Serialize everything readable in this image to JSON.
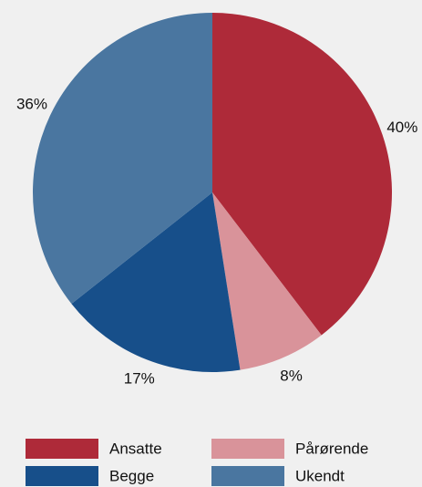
{
  "chart_data": {
    "type": "pie",
    "categories": [
      "Ansatte",
      "Pårørende",
      "Begge",
      "Ukendt"
    ],
    "values": [
      40,
      8,
      17,
      36
    ],
    "value_labels": [
      "40%",
      "8%",
      "17%",
      "36%"
    ],
    "colors": [
      "#ae2a39",
      "#d9939a",
      "#174f8a",
      "#4a76a0"
    ],
    "legend": "bottom"
  }
}
